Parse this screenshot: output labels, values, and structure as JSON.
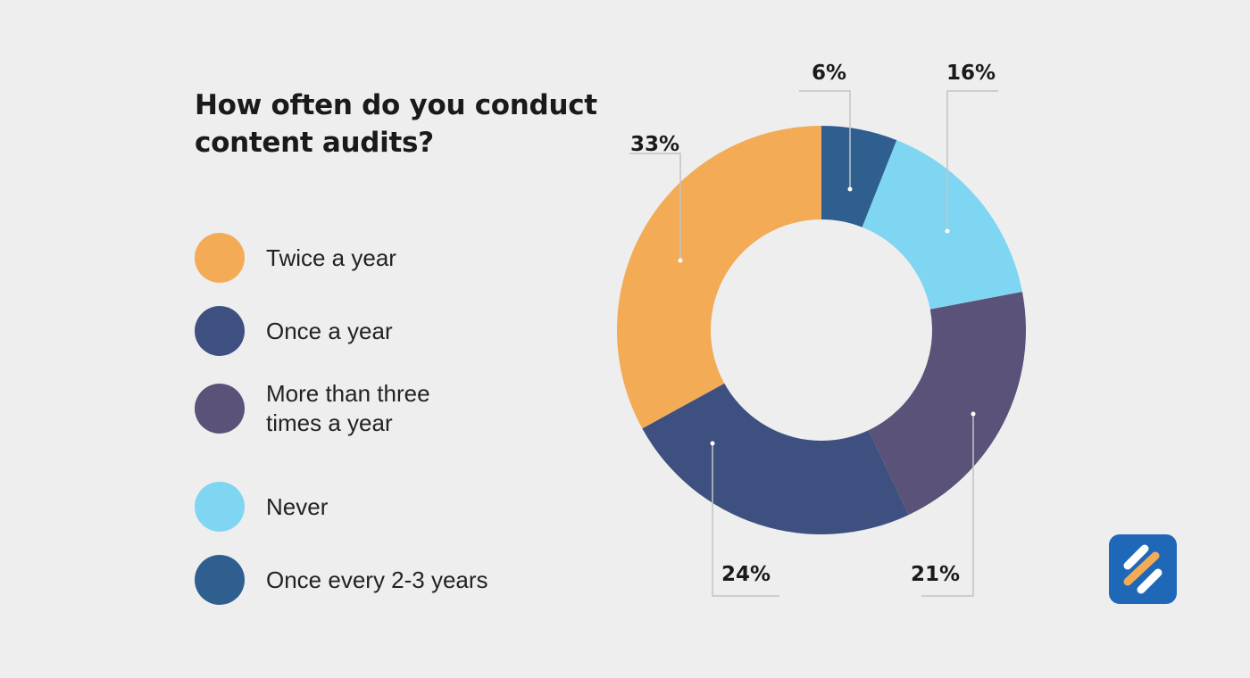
{
  "chart_data": {
    "type": "pie",
    "title": "How often do you conduct content audits?",
    "categories": [
      "Once every 2-3 years",
      "Never",
      "More than three times a year",
      "Once a year",
      "Twice a year"
    ],
    "values": [
      6,
      16,
      21,
      24,
      33
    ],
    "value_labels": [
      "6%",
      "16%",
      "21%",
      "24%",
      "33%"
    ],
    "colors": [
      "#2f5f8f",
      "#7fd6f2",
      "#5a5278",
      "#3d507f",
      "#f3ab55"
    ],
    "donut": true
  },
  "legend": [
    {
      "label": "Twice a year",
      "color": "#f3ab55"
    },
    {
      "label": "Once a year",
      "color": "#3d507f"
    },
    {
      "label": "More than three times a year",
      "color": "#5a5278"
    },
    {
      "label": "Never",
      "color": "#7fd6f2"
    },
    {
      "label": "Once every 2-3 years",
      "color": "#2f5f8f"
    }
  ],
  "logo": {
    "icon": "brand-slash-icon",
    "color": "#1f67b7",
    "accent": "#f3ab55"
  }
}
